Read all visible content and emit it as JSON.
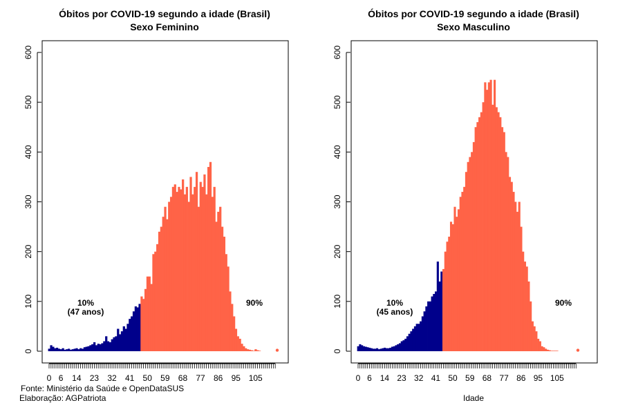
{
  "chart_data": [
    {
      "type": "bar",
      "title": "Óbitos por COVID-19 segundo a idade (Brasil)",
      "subtitle": "Sexo Feminino",
      "xlabel": "",
      "ylabel": "",
      "ylim": [
        0,
        600
      ],
      "yticks": [
        0,
        100,
        200,
        300,
        400,
        500,
        600
      ],
      "xtick_labels": [
        "0",
        "6",
        "14",
        "23",
        "32",
        "41",
        "50",
        "59",
        "68",
        "77",
        "86",
        "95",
        "105"
      ],
      "colors": {
        "below": "#00008B",
        "above": "#FF6347"
      },
      "split_age": 47,
      "annotation_left": "10%",
      "annotation_left_sub": "(47 anos)",
      "annotation_right": "90%",
      "ages": [
        0,
        1,
        2,
        3,
        4,
        5,
        6,
        7,
        8,
        9,
        10,
        11,
        12,
        13,
        14,
        15,
        16,
        17,
        18,
        19,
        20,
        21,
        22,
        23,
        24,
        25,
        26,
        27,
        28,
        29,
        30,
        31,
        32,
        33,
        34,
        35,
        36,
        37,
        38,
        39,
        40,
        41,
        42,
        43,
        44,
        45,
        46,
        47,
        48,
        49,
        50,
        51,
        52,
        53,
        54,
        55,
        56,
        57,
        58,
        59,
        60,
        61,
        62,
        63,
        64,
        65,
        66,
        67,
        68,
        69,
        70,
        71,
        72,
        73,
        74,
        75,
        76,
        77,
        78,
        79,
        80,
        81,
        82,
        83,
        84,
        85,
        86,
        87,
        88,
        89,
        90,
        91,
        92,
        93,
        94,
        95,
        96,
        97,
        98,
        99,
        100,
        101,
        102,
        103,
        104,
        105,
        106,
        107,
        108,
        109,
        110,
        111,
        112,
        113,
        114,
        115,
        116
      ],
      "values": [
        5,
        12,
        9,
        6,
        7,
        5,
        4,
        6,
        3,
        4,
        5,
        3,
        4,
        5,
        6,
        4,
        6,
        5,
        8,
        9,
        10,
        12,
        14,
        18,
        12,
        15,
        14,
        16,
        20,
        30,
        20,
        18,
        24,
        28,
        30,
        45,
        34,
        40,
        50,
        45,
        55,
        65,
        70,
        80,
        90,
        88,
        95,
        110,
        105,
        125,
        150,
        150,
        135,
        195,
        200,
        215,
        240,
        250,
        270,
        290,
        265,
        300,
        310,
        330,
        335,
        320,
        330,
        325,
        345,
        315,
        330,
        300,
        350,
        315,
        330,
        360,
        290,
        340,
        330,
        355,
        315,
        370,
        380,
        310,
        330,
        260,
        280,
        290,
        250,
        230,
        195,
        170,
        120,
        95,
        70,
        45,
        30,
        25,
        15,
        10,
        6,
        4,
        3,
        2,
        1,
        4,
        2,
        1,
        0,
        0,
        0,
        0,
        0,
        0,
        0,
        0,
        2
      ]
    },
    {
      "type": "bar",
      "title": "Óbitos por COVID-19 segundo a idade (Brasil)",
      "subtitle": "Sexo Masculino",
      "xlabel": "Idade",
      "ylabel": "",
      "ylim": [
        0,
        600
      ],
      "yticks": [
        0,
        100,
        200,
        300,
        400,
        500,
        600
      ],
      "xtick_labels": [
        "0",
        "6",
        "14",
        "23",
        "32",
        "41",
        "50",
        "59",
        "68",
        "77",
        "86",
        "95",
        "105"
      ],
      "colors": {
        "below": "#00008B",
        "above": "#FF6347"
      },
      "split_age": 45,
      "annotation_left": "10%",
      "annotation_left_sub": "(45 anos)",
      "annotation_right": "90%",
      "ages": [
        0,
        1,
        2,
        3,
        4,
        5,
        6,
        7,
        8,
        9,
        10,
        11,
        12,
        13,
        14,
        15,
        16,
        17,
        18,
        19,
        20,
        21,
        22,
        23,
        24,
        25,
        26,
        27,
        28,
        29,
        30,
        31,
        32,
        33,
        34,
        35,
        36,
        37,
        38,
        39,
        40,
        41,
        42,
        43,
        44,
        45,
        46,
        47,
        48,
        49,
        50,
        51,
        52,
        53,
        54,
        55,
        56,
        57,
        58,
        59,
        60,
        61,
        62,
        63,
        64,
        65,
        66,
        67,
        68,
        69,
        70,
        71,
        72,
        73,
        74,
        75,
        76,
        77,
        78,
        79,
        80,
        81,
        82,
        83,
        84,
        85,
        86,
        87,
        88,
        89,
        90,
        91,
        92,
        93,
        94,
        95,
        96,
        97,
        98,
        99,
        100,
        101,
        102,
        103,
        104,
        105,
        106,
        107,
        108,
        109,
        110,
        111,
        112,
        113,
        114,
        115,
        116
      ],
      "values": [
        10,
        14,
        12,
        10,
        9,
        8,
        7,
        6,
        5,
        5,
        6,
        4,
        5,
        6,
        7,
        6,
        6,
        7,
        9,
        10,
        12,
        14,
        16,
        20,
        22,
        25,
        30,
        35,
        40,
        45,
        50,
        55,
        55,
        60,
        70,
        80,
        90,
        100,
        100,
        110,
        115,
        120,
        180,
        140,
        160,
        165,
        200,
        220,
        230,
        260,
        255,
        290,
        270,
        285,
        310,
        320,
        330,
        360,
        380,
        390,
        400,
        420,
        450,
        460,
        470,
        480,
        500,
        540,
        525,
        540,
        545,
        495,
        545,
        490,
        480,
        470,
        450,
        440,
        400,
        390,
        350,
        340,
        320,
        300,
        280,
        300,
        250,
        200,
        180,
        170,
        140,
        100,
        60,
        50,
        40,
        25,
        20,
        10,
        8,
        5,
        3,
        2,
        1,
        1,
        1,
        1,
        0,
        0,
        0,
        0,
        0,
        0,
        0,
        0,
        0,
        0,
        2
      ]
    }
  ],
  "footer": {
    "source": "Fonte: Ministério da Saúde e OpenDataSUS",
    "credit": "Elaboração: AGPatriota"
  }
}
